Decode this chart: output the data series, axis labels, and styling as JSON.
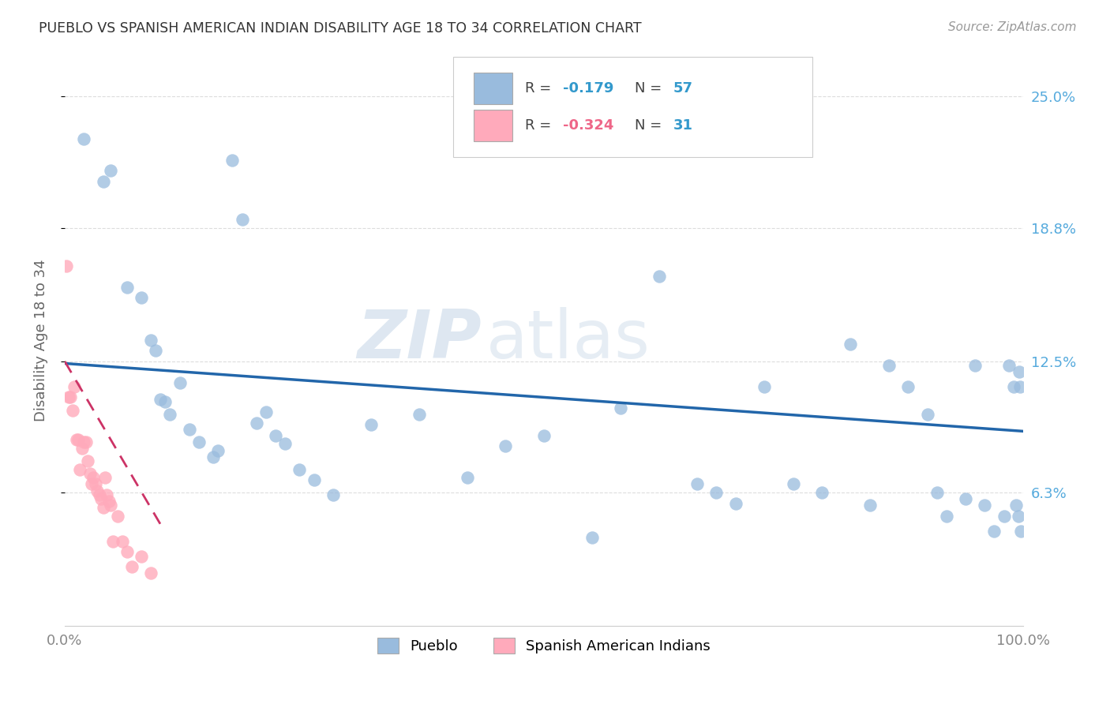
{
  "title": "PUEBLO VS SPANISH AMERICAN INDIAN DISABILITY AGE 18 TO 34 CORRELATION CHART",
  "source": "Source: ZipAtlas.com",
  "ylabel": "Disability Age 18 to 34",
  "xlim": [
    0,
    1.0
  ],
  "ylim": [
    0,
    0.27
  ],
  "ytick_values": [
    0.063,
    0.125,
    0.188,
    0.25
  ],
  "ytick_labels": [
    "6.3%",
    "12.5%",
    "18.8%",
    "25.0%"
  ],
  "xtick_positions": [
    0.0,
    1.0
  ],
  "xtick_labels": [
    "0.0%",
    "100.0%"
  ],
  "watermark_zip": "ZIP",
  "watermark_atlas": "atlas",
  "legend_blue_r": "-0.179",
  "legend_blue_n": "57",
  "legend_pink_r": "-0.324",
  "legend_pink_n": "31",
  "blue_scatter_color": "#99bbdd",
  "pink_scatter_color": "#ffaabb",
  "blue_line_color": "#2266aa",
  "pink_line_color": "#cc3366",
  "pink_line_dash": [
    6,
    4
  ],
  "grid_color": "#dddddd",
  "grid_linestyle": "--",
  "title_color": "#333333",
  "source_color": "#999999",
  "ylabel_color": "#666666",
  "tick_color": "#888888",
  "right_tick_color": "#55aadd",
  "legend_r_blue_color": "#3399cc",
  "legend_r_pink_color": "#ee6688",
  "legend_n_color": "#3399cc",
  "legend_edge_color": "#cccccc",
  "bottom_legend_label1": "Pueblo",
  "bottom_legend_label2": "Spanish American Indians",
  "pueblo_x": [
    0.02,
    0.04,
    0.048,
    0.065,
    0.08,
    0.09,
    0.095,
    0.1,
    0.105,
    0.11,
    0.12,
    0.13,
    0.14,
    0.155,
    0.16,
    0.175,
    0.185,
    0.2,
    0.21,
    0.22,
    0.23,
    0.245,
    0.26,
    0.28,
    0.32,
    0.37,
    0.42,
    0.46,
    0.5,
    0.55,
    0.58,
    0.62,
    0.66,
    0.68,
    0.7,
    0.73,
    0.76,
    0.79,
    0.82,
    0.84,
    0.86,
    0.88,
    0.9,
    0.91,
    0.92,
    0.94,
    0.95,
    0.96,
    0.97,
    0.98,
    0.985,
    0.99,
    0.993,
    0.995,
    0.996,
    0.997,
    0.998
  ],
  "pueblo_y": [
    0.23,
    0.21,
    0.215,
    0.16,
    0.155,
    0.135,
    0.13,
    0.107,
    0.106,
    0.1,
    0.115,
    0.093,
    0.087,
    0.08,
    0.083,
    0.22,
    0.192,
    0.096,
    0.101,
    0.09,
    0.086,
    0.074,
    0.069,
    0.062,
    0.095,
    0.1,
    0.07,
    0.085,
    0.09,
    0.042,
    0.103,
    0.165,
    0.067,
    0.063,
    0.058,
    0.113,
    0.067,
    0.063,
    0.133,
    0.057,
    0.123,
    0.113,
    0.1,
    0.063,
    0.052,
    0.06,
    0.123,
    0.057,
    0.045,
    0.052,
    0.123,
    0.113,
    0.057,
    0.052,
    0.12,
    0.113,
    0.045
  ],
  "sai_x": [
    0.002,
    0.004,
    0.006,
    0.008,
    0.01,
    0.012,
    0.014,
    0.016,
    0.018,
    0.02,
    0.022,
    0.024,
    0.026,
    0.028,
    0.03,
    0.032,
    0.034,
    0.036,
    0.038,
    0.04,
    0.042,
    0.044,
    0.046,
    0.048,
    0.05,
    0.055,
    0.06,
    0.065,
    0.07,
    0.08,
    0.09
  ],
  "sai_y": [
    0.17,
    0.108,
    0.108,
    0.102,
    0.113,
    0.088,
    0.088,
    0.074,
    0.084,
    0.087,
    0.087,
    0.078,
    0.072,
    0.067,
    0.07,
    0.067,
    0.064,
    0.062,
    0.06,
    0.056,
    0.07,
    0.062,
    0.059,
    0.057,
    0.04,
    0.052,
    0.04,
    0.035,
    0.028,
    0.033,
    0.025
  ],
  "blue_trend_x": [
    0.0,
    1.0
  ],
  "blue_trend_y": [
    0.124,
    0.092
  ],
  "pink_trend_x": [
    0.0,
    0.1
  ],
  "pink_trend_y": [
    0.125,
    0.048
  ]
}
